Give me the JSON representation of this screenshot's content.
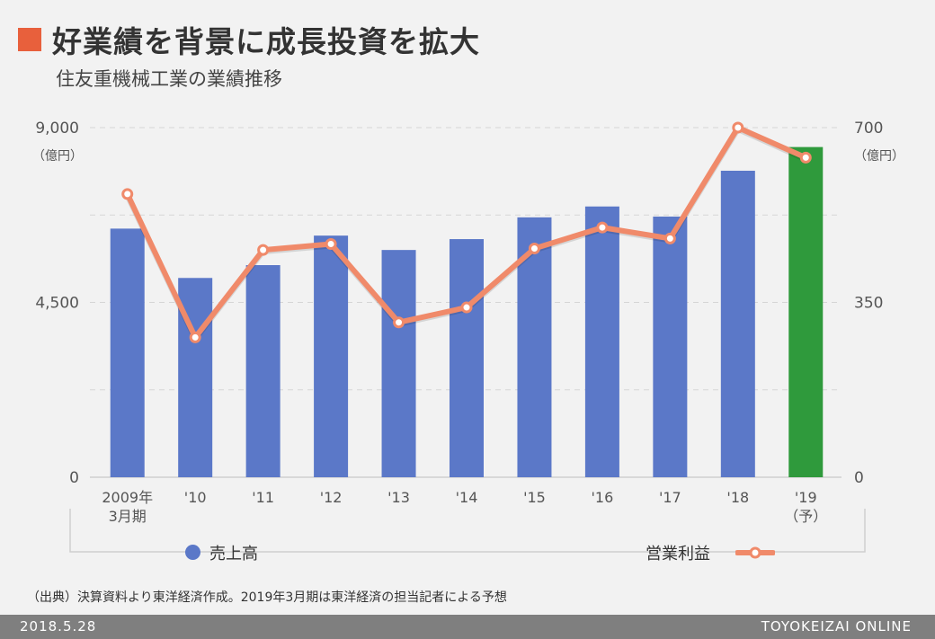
{
  "header": {
    "title": "好業績を背景に成長投資を拡大",
    "subtitle": "住友重機械工業の業績推移"
  },
  "colors": {
    "bar": "#5b78c8",
    "bar_forecast": "#2f9a3c",
    "line": "#f08a6a",
    "title_square": "#e8603c"
  },
  "chart_data": {
    "type": "bar",
    "categories": [
      "2009年\n3月期",
      "'10",
      "'11",
      "'12",
      "'13",
      "'14",
      "'15",
      "'16",
      "'17",
      "'18",
      "'19\n（予）"
    ],
    "series": [
      {
        "name": "売上高",
        "type": "bar",
        "axis": "left",
        "values": [
          6400,
          5130,
          5460,
          6220,
          5850,
          6130,
          6690,
          6970,
          6710,
          7890,
          8500
        ]
      },
      {
        "name": "営業利益",
        "type": "line",
        "axis": "right",
        "values": [
          567,
          280,
          455,
          467,
          310,
          340,
          458,
          500,
          478,
          700,
          640
        ]
      }
    ],
    "y_left": {
      "ylim": [
        0,
        9000
      ],
      "ticks": [
        "0",
        "4,500",
        "9,000"
      ],
      "unit": "（億円）"
    },
    "y_right": {
      "ylim": [
        0,
        700
      ],
      "ticks": [
        "0",
        "350",
        "700"
      ],
      "unit": "（億円）"
    },
    "forecast_index": 10,
    "grid": true,
    "legend_position": "bottom"
  },
  "legend": {
    "bar_label": "売上高",
    "line_label": "営業利益"
  },
  "source": "（出典）決算資料より東洋経済作成。2019年3月期は東洋経済の担当記者による予想",
  "footer": {
    "date": "2018.5.28",
    "brand": "TOYOKEIZAI ONLINE"
  }
}
